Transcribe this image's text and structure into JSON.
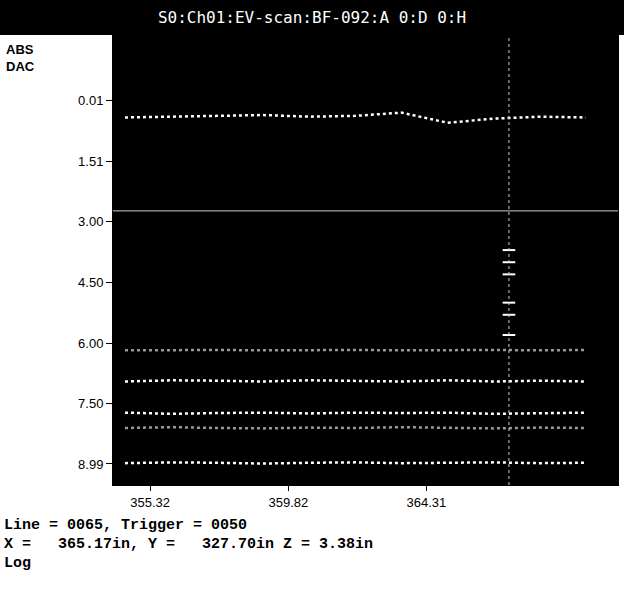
{
  "chart_data": {
    "type": "line",
    "title": "S0:Ch01:EV-scan:BF-092:A 0:D 0:H",
    "y_label": [
      "ABS",
      "DAC"
    ],
    "x": [
      354.5,
      356,
      357.5,
      359,
      360.5,
      362,
      363.5,
      365,
      366.5,
      368,
      369.5
    ],
    "series": [
      {
        "color": "#ffffff",
        "line_style": "dotted",
        "values": [
          0.42,
          0.4,
          0.38,
          0.36,
          0.4,
          0.38,
          0.3,
          0.55,
          0.45,
          0.4,
          0.42
        ]
      },
      {
        "color": "#9a9a9a",
        "line_style": "dotted",
        "values": [
          6.18,
          6.17,
          6.17,
          6.18,
          6.17,
          6.17,
          6.18,
          6.17,
          6.17,
          6.18,
          6.17
        ]
      },
      {
        "color": "#ffffff",
        "line_style": "dotted",
        "values": [
          6.95,
          6.92,
          6.93,
          6.95,
          6.92,
          6.94,
          6.95,
          6.92,
          6.95,
          6.93,
          6.95
        ]
      },
      {
        "color": "#ffffff",
        "line_style": "dotted",
        "values": [
          7.72,
          7.75,
          7.73,
          7.72,
          7.74,
          7.72,
          7.73,
          7.72,
          7.75,
          7.73,
          7.72
        ]
      },
      {
        "color": "#9a9a9a",
        "line_style": "dotted",
        "values": [
          8.1,
          8.08,
          8.1,
          8.11,
          8.09,
          8.1,
          8.08,
          8.1,
          8.11,
          8.09,
          8.1
        ]
      },
      {
        "color": "#ffffff",
        "line_style": "dotted",
        "values": [
          8.97,
          8.95,
          8.96,
          8.98,
          8.96,
          8.95,
          8.97,
          8.96,
          8.95,
          8.97,
          8.96
        ]
      },
      {
        "type": "scatter",
        "marker": "line-ew",
        "color": "#ffffff",
        "x": [
          367.0,
          367.0,
          367.0,
          367.0,
          367.0,
          367.0
        ],
        "values": [
          3.7,
          4.0,
          4.3,
          5.0,
          5.3,
          5.8
        ]
      }
    ],
    "cursors": {
      "x": 367.0,
      "y": 2.73
    },
    "xlim": [
      354.11,
      370.55
    ],
    "xticks": [
      355.32,
      359.82,
      364.31
    ],
    "ylim": [
      -1.62,
      9.51
    ],
    "yticks": [
      0.01,
      1.51,
      {
        "value": 3,
        "label": "3.00"
      },
      {
        "value": 4.5,
        "label": "4.50"
      },
      {
        "value": 6,
        "label": "6.00"
      },
      {
        "value": 7.5,
        "label": "7.50"
      },
      8.99
    ],
    "grid": false,
    "info": [
      "Line = 0065, Trigger = 0050",
      "X =   365.17in, Y =   327.70in Z = 3.38in",
      "Log"
    ]
  }
}
